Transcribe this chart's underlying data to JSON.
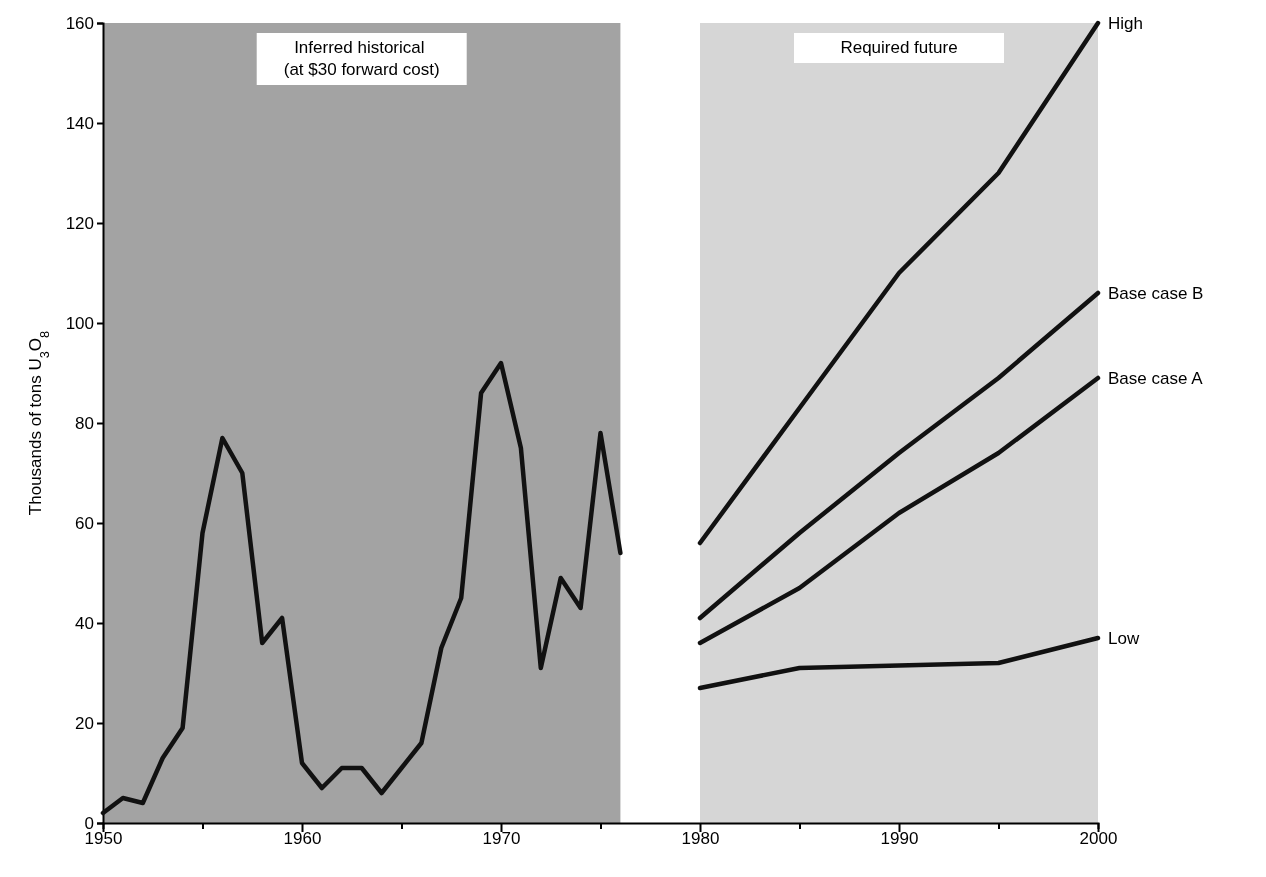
{
  "chart_data": {
    "type": "line",
    "ylabel": "Thousands of tons U$_{3}$O$_{8}$",
    "xlim": [
      1950,
      2000
    ],
    "ylim": [
      0,
      160
    ],
    "xticks": [
      1950,
      {
        "value": 1955,
        "label": null
      },
      1960,
      {
        "value": 1965,
        "label": null
      },
      1970,
      {
        "value": 1975,
        "label": null
      },
      1980,
      {
        "value": 1985,
        "label": null
      },
      1990,
      {
        "value": 1995,
        "label": null
      },
      2000
    ],
    "yticks": [
      0,
      20,
      40,
      60,
      80,
      100,
      120,
      140,
      160
    ],
    "grid": false,
    "marker": "none",
    "line_style": "solid",
    "bands": [
      {
        "axis": "x",
        "from": 1950,
        "to": 1976,
        "label": "Inferred historical (at $30 forward cost)",
        "color": "#a3a3a3"
      },
      {
        "axis": "x",
        "from": 1980,
        "to": 2000,
        "label": "Required future",
        "color": "#d6d6d6"
      }
    ],
    "series": [
      {
        "color": "#111111",
        "x": [
          1950,
          1951,
          1952,
          1953,
          1954,
          1955,
          1956,
          1957,
          1958,
          1959,
          1960,
          1961,
          1962,
          1963,
          1964,
          1965,
          1966,
          1967,
          1968,
          1969,
          1970,
          1971,
          1972,
          1973,
          1974,
          1975,
          1976
        ],
        "values": [
          2,
          5,
          4,
          13,
          19,
          58,
          77,
          70,
          36,
          41,
          12,
          7,
          11,
          11,
          6,
          11,
          16,
          35,
          45,
          86,
          92,
          75,
          31,
          49,
          43,
          78,
          54
        ]
      },
      {
        "name": "High",
        "color": "#111111",
        "x": [
          1980,
          1985,
          1990,
          1995,
          2000
        ],
        "values": [
          56,
          83,
          110,
          130,
          160
        ]
      },
      {
        "name": "Base case B",
        "color": "#111111",
        "x": [
          1980,
          1985,
          1990,
          1995,
          2000
        ],
        "values": [
          41,
          58,
          74,
          89,
          106
        ]
      },
      {
        "name": "Base case A",
        "color": "#111111",
        "x": [
          1980,
          1985,
          1990,
          1995,
          2000
        ],
        "values": [
          36,
          47,
          62,
          74,
          89
        ]
      },
      {
        "name": "Low",
        "color": "#111111",
        "x": [
          1980,
          1985,
          1990,
          1995,
          2000
        ],
        "values": [
          27,
          31,
          31.5,
          32,
          37
        ]
      }
    ]
  }
}
